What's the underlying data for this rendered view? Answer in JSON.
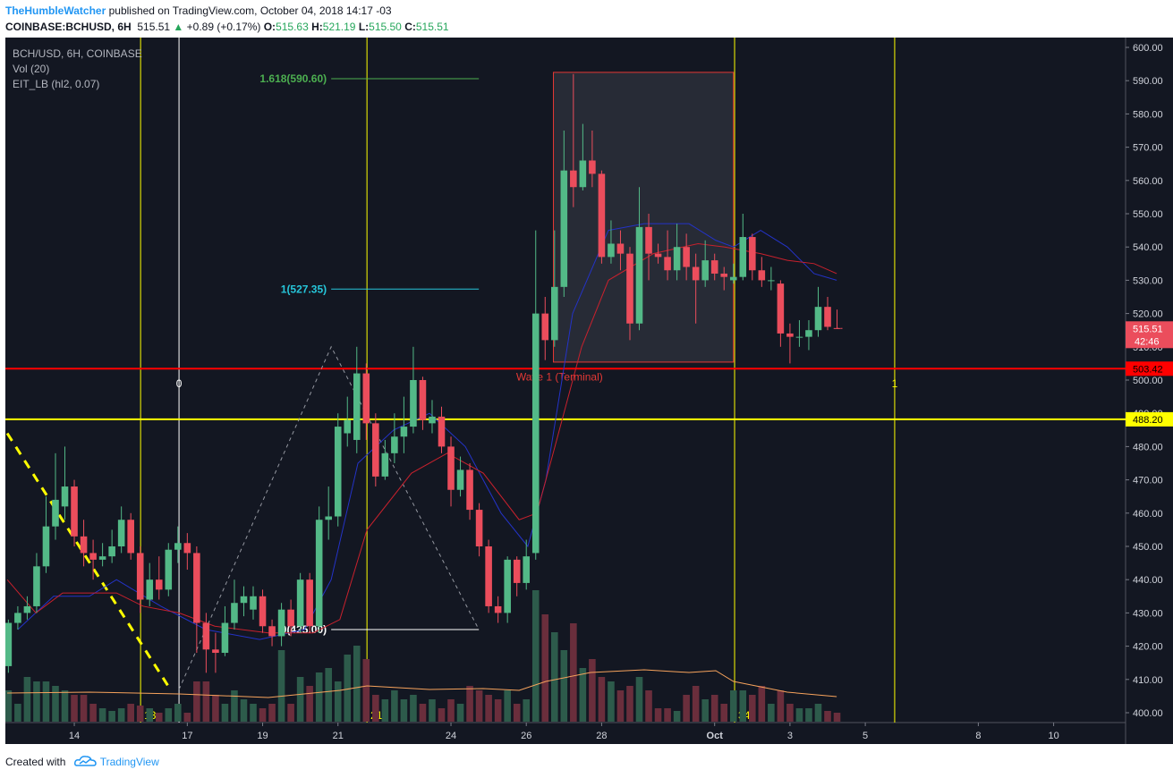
{
  "header": {
    "author": "TheHumbleWatcher",
    "published": "published on TradingView.com, October 04, 2018 14:17 -03",
    "symbol": "COINBASE:BCHUSD, 6H",
    "last": "515.51",
    "arrow": "▲",
    "change": "+0.89 (+0.17%)",
    "o_label": "O:",
    "o": "515.63",
    "h_label": "H:",
    "h": "521.19",
    "l_label": "L:",
    "l": "515.50",
    "c_label": "C:",
    "c": "515.51"
  },
  "legend": [
    "BCH/USD, 6H, COINBASE",
    "Vol (20)",
    "EIT_LB (hl2, 0.07)"
  ],
  "footer": {
    "created": "Created with",
    "brand": "TradingView"
  },
  "chart_data": {
    "type": "candlestick",
    "up_color": "#53b987",
    "down_color": "#eb4d5c",
    "up_volume_color": "#2d5b4b",
    "down_volume_color": "#6a2e3c",
    "x": [
      12.25,
      12.5,
      12.75,
      13,
      13.25,
      13.5,
      13.75,
      14,
      14.25,
      14.5,
      14.75,
      15,
      15.25,
      15.5,
      15.75,
      16,
      16.25,
      16.5,
      16.75,
      17,
      17.25,
      17.5,
      17.75,
      18,
      18.25,
      18.5,
      18.75,
      19,
      19.25,
      19.5,
      19.75,
      20,
      20.25,
      20.5,
      20.75,
      21,
      21.25,
      21.5,
      21.75,
      22,
      22.25,
      22.5,
      22.75,
      23,
      23.25,
      23.5,
      23.75,
      24,
      24.25,
      24.5,
      24.75,
      25,
      25.25,
      25.5,
      25.75,
      26,
      26.25,
      26.5,
      26.75,
      27,
      27.25,
      27.5,
      27.75,
      28,
      28.25,
      28.5,
      28.75,
      29,
      29.25,
      29.5,
      29.75,
      30,
      30.25,
      30.5,
      30.75,
      31,
      31.25,
      31.5,
      31.75,
      32,
      32.25,
      32.5,
      32.75,
      33,
      33.25,
      33.5,
      33.75,
      34,
      34.25
    ],
    "open": [
      414,
      427,
      430,
      432,
      444,
      456,
      462,
      468,
      453,
      448,
      446,
      447,
      450,
      458,
      448,
      434,
      440,
      437,
      449,
      451,
      448,
      427,
      419,
      418,
      427,
      433,
      431,
      435,
      426,
      423,
      431,
      426,
      440,
      426,
      458,
      459,
      484,
      482,
      502,
      487,
      471,
      478,
      483,
      486,
      500,
      487,
      489,
      480,
      467,
      473,
      461,
      450,
      432,
      430,
      446,
      439,
      448,
      520,
      512,
      528,
      563,
      558,
      566,
      562,
      537,
      541,
      538,
      517,
      546,
      538,
      537,
      533,
      540,
      534,
      530,
      536,
      532,
      530,
      531,
      543,
      533,
      530,
      529,
      514,
      513,
      513,
      515,
      522,
      515.63
    ],
    "high": [
      428,
      432,
      435,
      448,
      465,
      478,
      480,
      470,
      458,
      452,
      451,
      455,
      462,
      460,
      450,
      445,
      447,
      451,
      456,
      454,
      450,
      430,
      424,
      432,
      440,
      438,
      438,
      437,
      428,
      433,
      434,
      442,
      442,
      462,
      468,
      490,
      495,
      510,
      505,
      490,
      482,
      490,
      495,
      510,
      501,
      494,
      492,
      483,
      477,
      475,
      463,
      452,
      435,
      447,
      447,
      452,
      545,
      525,
      545,
      575,
      592,
      577,
      575,
      563,
      548,
      545,
      540,
      558,
      550,
      541,
      545,
      547,
      544,
      538,
      542,
      538,
      534,
      535,
      550,
      544,
      537,
      534,
      530,
      517,
      518,
      518,
      528,
      525,
      521.19
    ],
    "low": [
      412,
      425,
      428,
      430,
      442,
      452,
      458,
      450,
      444,
      440,
      444,
      445,
      448,
      446,
      430,
      432,
      434,
      435,
      445,
      443,
      418,
      412,
      412,
      417,
      425,
      429,
      428,
      424,
      420,
      420,
      423,
      424,
      424,
      424,
      452,
      456,
      480,
      478,
      482,
      468,
      470,
      475,
      478,
      484,
      485,
      484,
      478,
      462,
      465,
      458,
      447,
      430,
      427,
      427,
      435,
      437,
      446,
      506,
      510,
      525,
      552,
      557,
      558,
      535,
      535,
      533,
      512,
      515,
      530,
      535,
      530,
      530,
      530,
      517,
      528,
      530,
      527,
      529,
      530,
      530,
      528,
      527,
      510,
      505,
      510,
      509,
      513,
      515,
      515.5
    ],
    "close": [
      427,
      430,
      432,
      444,
      456,
      464,
      468,
      453,
      448,
      446,
      447,
      450,
      458,
      448,
      434,
      440,
      437,
      449,
      451,
      448,
      427,
      419,
      418,
      427,
      433,
      435,
      435,
      426,
      423,
      431,
      426,
      440,
      426,
      458,
      459,
      486,
      488,
      502,
      487,
      471,
      478,
      483,
      486,
      500,
      488,
      489,
      480,
      467,
      473,
      461,
      450,
      432,
      430,
      446,
      439,
      447,
      520,
      512,
      528,
      563,
      558,
      566,
      562,
      537,
      541,
      538,
      517,
      546,
      538,
      537,
      533,
      540,
      534,
      530,
      536,
      532,
      531,
      531,
      543,
      533,
      530,
      530,
      514,
      513,
      513,
      515,
      522,
      516,
      515.51
    ],
    "volume": [
      35,
      20,
      50,
      45,
      45,
      40,
      35,
      30,
      30,
      20,
      15,
      12,
      15,
      20,
      18,
      15,
      10,
      15,
      20,
      10,
      45,
      45,
      30,
      20,
      35,
      25,
      20,
      15,
      20,
      80,
      20,
      50,
      40,
      55,
      60,
      45,
      75,
      85,
      70,
      30,
      25,
      35,
      25,
      30,
      20,
      25,
      15,
      25,
      20,
      40,
      35,
      30,
      25,
      35,
      20,
      25,
      147,
      120,
      100,
      80,
      110,
      60,
      70,
      50,
      45,
      35,
      40,
      50,
      35,
      15,
      15,
      12,
      30,
      40,
      25,
      30,
      20,
      35,
      35,
      30,
      40,
      20,
      35,
      20,
      15,
      15,
      20,
      12,
      10
    ],
    "volume_ma": {
      "color": "#f7a35c",
      "x": [
        12.22,
        14.4,
        16.78,
        19.15,
        21.05,
        21.77,
        23.43,
        24.86,
        25.81,
        26.52,
        27.71,
        29.13,
        30.32,
        31.03,
        31.5,
        32.93,
        34.24
      ],
      "values": [
        32,
        33,
        31,
        27,
        35,
        40,
        36,
        37,
        35,
        45,
        55,
        58,
        55,
        57,
        45,
        33,
        28
      ]
    },
    "overlays": [
      {
        "color": "#2433c8",
        "x": [
          12.5,
          13.45,
          14.4,
          15.12,
          16.3,
          17.49,
          18.92,
          20.11,
          20.82,
          21.53,
          22.48,
          23.43,
          24.38,
          25.33,
          26.04,
          26.52,
          27.23,
          28.18,
          29.13,
          30.32,
          31.03,
          31.5,
          32.22,
          32.93,
          33.64,
          34.24
        ],
        "values": [
          425,
          435,
          435,
          440,
          432,
          425,
          422,
          425,
          440,
          475,
          485,
          490,
          480,
          460,
          450,
          470,
          520,
          545,
          547,
          547,
          542,
          540,
          545,
          540,
          532,
          530
        ]
      },
      {
        "color": "#c8212d",
        "x": [
          12.22,
          12.98,
          13.69,
          15.12,
          15.83,
          16.78,
          17.73,
          19.15,
          20.34,
          21.05,
          21.77,
          22.95,
          23.9,
          24.86,
          25.81,
          26.28,
          26.76,
          27.47,
          28.18,
          29.37,
          30.56,
          31.27,
          32.22,
          32.93,
          33.64,
          34.24
        ],
        "values": [
          440,
          430,
          436,
          436,
          432,
          430,
          426,
          424,
          424,
          428,
          455,
          472,
          478,
          472,
          458,
          460,
          480,
          510,
          530,
          538,
          541,
          540,
          538,
          536,
          535,
          532
        ]
      }
    ],
    "xlim": [
      12.17,
      41.91
    ],
    "xticks": [
      14,
      17,
      19,
      21,
      24,
      26,
      28,
      {
        "value": 31,
        "label": "Oct"
      },
      {
        "value": 33,
        "label": "3"
      },
      {
        "value": 35,
        "label": "5"
      },
      {
        "value": 38,
        "label": "8"
      },
      {
        "value": 40,
        "label": "10"
      }
    ],
    "ylim": [
      397.04,
      602.96
    ],
    "yticks": [
      {
        "value": 400,
        "label": "400.00"
      },
      {
        "value": 410,
        "label": "410.00"
      },
      {
        "value": 420,
        "label": "420.00"
      },
      {
        "value": 430,
        "label": "430.00"
      },
      {
        "value": 440,
        "label": "440.00"
      },
      {
        "value": 450,
        "label": "450.00"
      },
      {
        "value": 460,
        "label": "460.00"
      },
      {
        "value": 470,
        "label": "470.00"
      },
      {
        "value": 480,
        "label": "480.00"
      },
      {
        "value": 490,
        "label": "490.00"
      },
      {
        "value": 500,
        "label": "500.00"
      },
      {
        "value": 510,
        "label": "510.00"
      },
      {
        "value": 520,
        "label": "520.00"
      },
      {
        "value": 530,
        "label": "530.00"
      },
      {
        "value": 540,
        "label": "540.00"
      },
      {
        "value": 550,
        "label": "550.00"
      },
      {
        "value": 560,
        "label": "560.00"
      },
      {
        "value": 570,
        "label": "570.00"
      },
      {
        "value": 580,
        "label": "580.00"
      },
      {
        "value": 590,
        "label": "590.00"
      },
      {
        "value": 600,
        "label": "600.00"
      }
    ],
    "grid": false,
    "hlines": [
      {
        "value": 503.42,
        "color": "#ff0000"
      },
      {
        "value": 488.2,
        "label": "488.20",
        "color": "#ffff00"
      }
    ],
    "last_price": {
      "value": 515.51,
      "countdown": "42:46",
      "color": "#eb4d5c"
    },
    "fib_levels": [
      {
        "value": 590.6,
        "label": "1.618(590.60)",
        "color": "#4caf50",
        "x": [
          20.82,
          24.74
        ]
      },
      {
        "value": 527.35,
        "label": "1(527.35)",
        "color": "#26c6da",
        "x": [
          20.82,
          24.74
        ]
      },
      {
        "value": 425,
        "label": "0(425.00)",
        "color": "#ffffff",
        "x": [
          20.82,
          24.74
        ]
      }
    ],
    "time_zones": {
      "color": "#ffff00",
      "x": [
        15.76,
        21.77,
        31.53
      ],
      "labels": [
        "13",
        "21",
        "34"
      ]
    },
    "trend_time": {
      "colors": [
        "#ffffff",
        "#ffff00"
      ],
      "x": [
        16.78,
        35.78
      ],
      "labels": [
        "0",
        "1"
      ]
    },
    "box": {
      "x": [
        26.72,
        31.5
      ],
      "y": [
        592.5,
        505.4
      ],
      "color": "#e53935"
    },
    "box_label": {
      "text": "Wave 1 (Terminal)",
      "x": 25.73,
      "y": 501,
      "color": "#e53935"
    },
    "paths": [
      {
        "color": "#9598a1",
        "dash": true,
        "x": [
          16.78,
          20.82,
          24.74
        ],
        "y": [
          407,
          510,
          425
        ]
      },
      {
        "color": "#ffff00",
        "dash": true,
        "x": [
          12.22,
          16.55
        ],
        "y": [
          484,
          407
        ]
      }
    ]
  }
}
